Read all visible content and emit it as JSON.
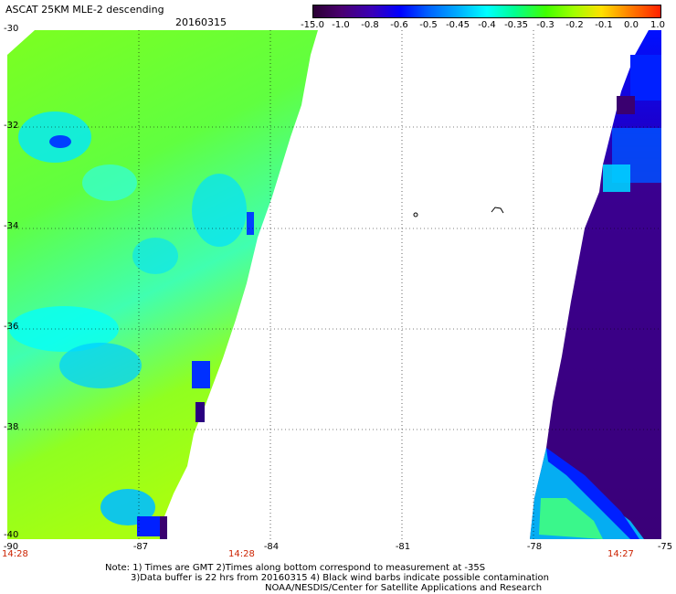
{
  "title": "ASCAT 25KM MLE-2 descending",
  "date": "20160315",
  "colorbar": {
    "labels": [
      "-15.0",
      "-1.0",
      "-0.8",
      "-0.6",
      "-0.5",
      "-0.45",
      "-0.4",
      "-0.35",
      "-0.3",
      "-0.2",
      "-0.1",
      "0.0",
      "1.0"
    ],
    "colors": [
      "#2a0033",
      "#4a0070",
      "#3a00b8",
      "#0000ff",
      "#0060ff",
      "#00b0ff",
      "#00ffff",
      "#00ff90",
      "#40ff00",
      "#a0ff00",
      "#ffe000",
      "#ff8000",
      "#ff2000"
    ]
  },
  "lat_labels": [
    "-30",
    "-32",
    "-34",
    "-36",
    "-38",
    "-40"
  ],
  "lon_labels": [
    "-90",
    "-87",
    "-84",
    "-81",
    "-78",
    "-75"
  ],
  "time_labels": [
    "14:28",
    "14:28",
    "14:27"
  ],
  "notes": [
    "Note: 1) Times are GMT 2)Times along bottom correspond to measurement at -35S",
    "3)Data buffer is 22 hrs from 20160315 4) Black wind barbs indicate possible contamination",
    "NOAA/NESDIS/Center for Satellite Applications and Research"
  ]
}
